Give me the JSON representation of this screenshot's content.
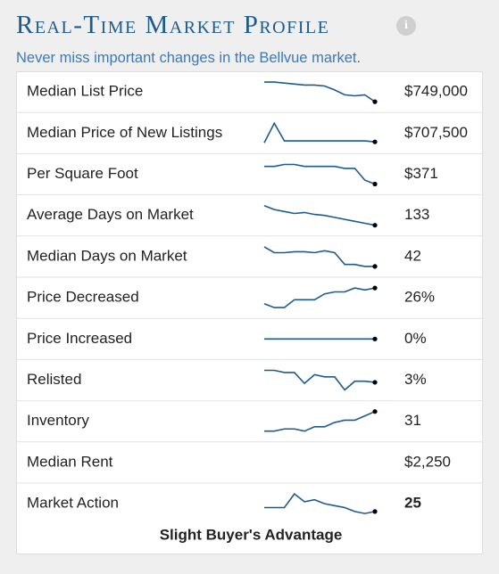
{
  "header": {
    "title": "Real-Time Market Profile",
    "subtitle": "Never miss important changes in the Bellvue market."
  },
  "rows": [
    {
      "label": "Median List Price",
      "value": "$749,000",
      "trend": [
        10,
        10,
        9.5,
        9,
        8.5,
        8.5,
        8,
        6,
        3.5,
        3,
        3.5,
        0
      ]
    },
    {
      "label": "Median Price of New Listings",
      "value": "$707,500",
      "trend": [
        0,
        10,
        1,
        1,
        1,
        1,
        1,
        1,
        1,
        1,
        1,
        0.5
      ]
    },
    {
      "label": "Per Square Foot",
      "value": "$371",
      "trend": [
        9,
        9,
        10,
        10,
        9,
        9,
        9,
        9,
        8,
        8,
        2,
        0
      ]
    },
    {
      "label": "Average Days on Market",
      "value": "133",
      "trend": [
        10,
        8,
        7,
        6,
        6.5,
        5.5,
        5,
        4,
        3,
        2,
        1,
        0
      ]
    },
    {
      "label": "Median Days on Market",
      "value": "42",
      "trend": [
        10,
        7,
        7,
        7.5,
        7.5,
        7,
        8,
        7,
        1,
        1,
        0,
        0
      ]
    },
    {
      "label": "Price Decreased",
      "value": "26%",
      "trend": [
        2,
        0,
        0,
        4,
        4,
        4,
        7,
        8,
        8,
        10,
        9,
        10
      ]
    },
    {
      "label": "Price Increased",
      "value": "0%",
      "trend": [
        5,
        5,
        5,
        5,
        5,
        5,
        5,
        5,
        5,
        5,
        5,
        5
      ]
    },
    {
      "label": "Relisted",
      "value": "3%",
      "trend": [
        9,
        9,
        8,
        8,
        3,
        7,
        6,
        6,
        0,
        4,
        4,
        3.5
      ]
    },
    {
      "label": "Inventory",
      "value": "31",
      "trend": [
        1,
        1,
        2,
        2,
        1,
        3,
        3,
        5,
        6,
        6,
        8,
        10
      ]
    },
    {
      "label": "Median Rent",
      "value": "$2,250"
    },
    {
      "label": "Market Action",
      "value": "25",
      "trend": [
        3,
        3,
        3,
        10,
        6,
        7,
        5,
        4,
        3,
        1,
        0,
        1
      ]
    }
  ],
  "footer": "Slight Buyer's Advantage"
}
